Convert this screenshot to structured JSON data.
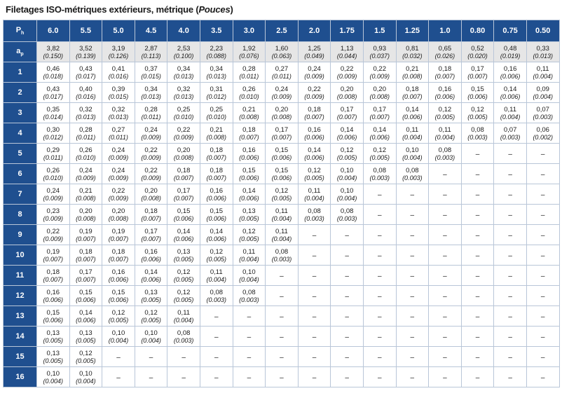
{
  "title": {
    "main": "Filetages ISO-métriques extérieurs, métrique (",
    "italic": "Pouces",
    "close": ")"
  },
  "corner": {
    "label": "P",
    "sub": "h"
  },
  "pitches": [
    "6.0",
    "5.5",
    "5.0",
    "4.5",
    "4.0",
    "3.5",
    "3.0",
    "2.5",
    "2.0",
    "1.75",
    "1.5",
    "1.25",
    "1.0",
    "0.80",
    "0.75",
    "0.50"
  ],
  "ap_row": {
    "label": "a",
    "sub": "p",
    "cells": [
      [
        "3,82",
        "(0.150)"
      ],
      [
        "3,52",
        "(0.139)"
      ],
      [
        "3,19",
        "(0.126)"
      ],
      [
        "2,87",
        "(0.113)"
      ],
      [
        "2,53",
        "(0.100)"
      ],
      [
        "2,23",
        "(0.088)"
      ],
      [
        "1,92",
        "(0.076)"
      ],
      [
        "1,60",
        "(0.063)"
      ],
      [
        "1,25",
        "(0.049)"
      ],
      [
        "1,13",
        "(0.044)"
      ],
      [
        "0,93",
        "(0.037)"
      ],
      [
        "0,81",
        "(0.032)"
      ],
      [
        "0,65",
        "(0.026)"
      ],
      [
        "0,52",
        "(0.020)"
      ],
      [
        "0,48",
        "(0.019)"
      ],
      [
        "0,33",
        "(0.013)"
      ]
    ]
  },
  "dash": "–",
  "rows": [
    {
      "label": "1",
      "cells": [
        [
          "0,46",
          "(0.018)"
        ],
        [
          "0,43",
          "(0.017)"
        ],
        [
          "0,41",
          "(0.016)"
        ],
        [
          "0,37",
          "(0.015)"
        ],
        [
          "0,34",
          "(0.013)"
        ],
        [
          "0,34",
          "(0.013)"
        ],
        [
          "0,28",
          "(0.011)"
        ],
        [
          "0,27",
          "(0.011)"
        ],
        [
          "0,24",
          "(0.009)"
        ],
        [
          "0,22",
          "(0.009)"
        ],
        [
          "0,22",
          "(0.009)"
        ],
        [
          "0,21",
          "(0.008)"
        ],
        [
          "0,18",
          "(0.007)"
        ],
        [
          "0,17",
          "(0.007)"
        ],
        [
          "0,16",
          "(0.006)"
        ],
        [
          "0,11",
          "(0.004)"
        ]
      ]
    },
    {
      "label": "2",
      "cells": [
        [
          "0,43",
          "(0.017)"
        ],
        [
          "0,40",
          "(0.016)"
        ],
        [
          "0,39",
          "(0.015)"
        ],
        [
          "0,34",
          "(0.013)"
        ],
        [
          "0,32",
          "(0.013)"
        ],
        [
          "0,31",
          "(0.012)"
        ],
        [
          "0,26",
          "(0.010)"
        ],
        [
          "0,24",
          "(0.009)"
        ],
        [
          "0,22",
          "(0.009)"
        ],
        [
          "0,20",
          "(0.008)"
        ],
        [
          "0,20",
          "(0.008)"
        ],
        [
          "0,18",
          "(0.007)"
        ],
        [
          "0,16",
          "(0.006)"
        ],
        [
          "0,15",
          "(0.006)"
        ],
        [
          "0,14",
          "(0.006)"
        ],
        [
          "0,09",
          "(0.004)"
        ]
      ]
    },
    {
      "label": "3",
      "cells": [
        [
          "0,35",
          "(0.014)"
        ],
        [
          "0,32",
          "(0.013)"
        ],
        [
          "0,32",
          "(0.013)"
        ],
        [
          "0,28",
          "(0.011)"
        ],
        [
          "0,25",
          "(0.010)"
        ],
        [
          "0,25",
          "(0.010)"
        ],
        [
          "0,21",
          "(0.008)"
        ],
        [
          "0,20",
          "(0.008)"
        ],
        [
          "0,18",
          "(0.007)"
        ],
        [
          "0,17",
          "(0.007)"
        ],
        [
          "0,17",
          "(0.007)"
        ],
        [
          "0,14",
          "(0.006)"
        ],
        [
          "0,12",
          "(0.005)"
        ],
        [
          "0,12",
          "(0.005)"
        ],
        [
          "0,11",
          "(0.004)"
        ],
        [
          "0,07",
          "(0.003)"
        ]
      ]
    },
    {
      "label": "4",
      "cells": [
        [
          "0,30",
          "(0.012)"
        ],
        [
          "0,28",
          "(0.011)"
        ],
        [
          "0,27",
          "(0.011)"
        ],
        [
          "0,24",
          "(0.009)"
        ],
        [
          "0,22",
          "(0.009)"
        ],
        [
          "0,21",
          "(0.008)"
        ],
        [
          "0,18",
          "(0.007)"
        ],
        [
          "0,17",
          "(0.007)"
        ],
        [
          "0,16",
          "(0.006)"
        ],
        [
          "0,14",
          "(0.006)"
        ],
        [
          "0,14",
          "(0.006)"
        ],
        [
          "0,11",
          "(0.004)"
        ],
        [
          "0,11",
          "(0.004)"
        ],
        [
          "0,08",
          "(0.003)"
        ],
        [
          "0,07",
          "(0.003)"
        ],
        [
          "0,06",
          "(0.002)"
        ]
      ]
    },
    {
      "label": "5",
      "cells": [
        [
          "0,29",
          "(0.011)"
        ],
        [
          "0,26",
          "(0.010)"
        ],
        [
          "0,24",
          "(0.009)"
        ],
        [
          "0,22",
          "(0.009)"
        ],
        [
          "0,20",
          "(0.008)"
        ],
        [
          "0,18",
          "(0.007)"
        ],
        [
          "0,16",
          "(0.006)"
        ],
        [
          "0,15",
          "(0.006)"
        ],
        [
          "0,14",
          "(0.006)"
        ],
        [
          "0,12",
          "(0.005)"
        ],
        [
          "0,12",
          "(0.005)"
        ],
        [
          "0,10",
          "(0.004)"
        ],
        [
          "0,08",
          "(0.003)"
        ],
        null,
        null,
        null
      ]
    },
    {
      "label": "6",
      "cells": [
        [
          "0,26",
          "(0.010)"
        ],
        [
          "0,24",
          "(0.009)"
        ],
        [
          "0,24",
          "(0.009)"
        ],
        [
          "0,22",
          "(0.009)"
        ],
        [
          "0,18",
          "(0.007)"
        ],
        [
          "0,18",
          "(0.007)"
        ],
        [
          "0,15",
          "(0.006)"
        ],
        [
          "0,15",
          "(0.006)"
        ],
        [
          "0,12",
          "(0.005)"
        ],
        [
          "0,10",
          "(0.004)"
        ],
        [
          "0,08",
          "(0.003)"
        ],
        [
          "0,08",
          "(0.003)"
        ],
        null,
        null,
        null,
        null
      ]
    },
    {
      "label": "7",
      "cells": [
        [
          "0,24",
          "(0.009)"
        ],
        [
          "0,21",
          "(0.008)"
        ],
        [
          "0,22",
          "(0.009)"
        ],
        [
          "0,20",
          "(0.008)"
        ],
        [
          "0,17",
          "(0.007)"
        ],
        [
          "0,16",
          "(0.006)"
        ],
        [
          "0,14",
          "(0.006)"
        ],
        [
          "0,12",
          "(0.005)"
        ],
        [
          "0,11",
          "(0.004)"
        ],
        [
          "0,10",
          "(0.004)"
        ],
        null,
        null,
        null,
        null,
        null,
        null
      ]
    },
    {
      "label": "8",
      "cells": [
        [
          "0,23",
          "(0.009)"
        ],
        [
          "0,20",
          "(0.008)"
        ],
        [
          "0,20",
          "(0.008)"
        ],
        [
          "0,18",
          "(0.007)"
        ],
        [
          "0,15",
          "(0.006)"
        ],
        [
          "0,15",
          "(0.006)"
        ],
        [
          "0,13",
          "(0.005)"
        ],
        [
          "0,11",
          "(0.004)"
        ],
        [
          "0,08",
          "(0.003)"
        ],
        [
          "0,08",
          "(0.003)"
        ],
        null,
        null,
        null,
        null,
        null,
        null
      ]
    },
    {
      "label": "9",
      "cells": [
        [
          "0,22",
          "(0.009)"
        ],
        [
          "0,19",
          "(0.007)"
        ],
        [
          "0,19",
          "(0.007)"
        ],
        [
          "0,17",
          "(0.007)"
        ],
        [
          "0,14",
          "(0.006)"
        ],
        [
          "0,14",
          "(0.006)"
        ],
        [
          "0,12",
          "(0.005)"
        ],
        [
          "0,11",
          "(0.004)"
        ],
        null,
        null,
        null,
        null,
        null,
        null,
        null,
        null
      ]
    },
    {
      "label": "10",
      "cells": [
        [
          "0,19",
          "(0.007)"
        ],
        [
          "0,18",
          "(0.007)"
        ],
        [
          "0,18",
          "(0.007)"
        ],
        [
          "0,16",
          "(0.006)"
        ],
        [
          "0,13",
          "(0.005)"
        ],
        [
          "0,12",
          "(0.005)"
        ],
        [
          "0,11",
          "(0.004)"
        ],
        [
          "0,08",
          "(0.003)"
        ],
        null,
        null,
        null,
        null,
        null,
        null,
        null,
        null
      ]
    },
    {
      "label": "11",
      "cells": [
        [
          "0,18",
          "(0.007)"
        ],
        [
          "0,17",
          "(0.007)"
        ],
        [
          "0,16",
          "(0.006)"
        ],
        [
          "0,14",
          "(0.006)"
        ],
        [
          "0,12",
          "(0.005)"
        ],
        [
          "0,11",
          "(0.004)"
        ],
        [
          "0,10",
          "(0.004)"
        ],
        null,
        null,
        null,
        null,
        null,
        null,
        null,
        null,
        null
      ]
    },
    {
      "label": "12",
      "cells": [
        [
          "0,16",
          "(0.006)"
        ],
        [
          "0,15",
          "(0.006)"
        ],
        [
          "0,15",
          "(0.006)"
        ],
        [
          "0,13",
          "(0.005)"
        ],
        [
          "0,12",
          "(0.005)"
        ],
        [
          "0,08",
          "(0.003)"
        ],
        [
          "0,08",
          "(0.003)"
        ],
        null,
        null,
        null,
        null,
        null,
        null,
        null,
        null,
        null
      ]
    },
    {
      "label": "13",
      "cells": [
        [
          "0,15",
          "(0.006)"
        ],
        [
          "0,14",
          "(0.006)"
        ],
        [
          "0,12",
          "(0.005)"
        ],
        [
          "0,12",
          "(0.005)"
        ],
        [
          "0,11",
          "(0.004)"
        ],
        null,
        null,
        null,
        null,
        null,
        null,
        null,
        null,
        null,
        null,
        null
      ]
    },
    {
      "label": "14",
      "cells": [
        [
          "0,13",
          "(0.005)"
        ],
        [
          "0,13",
          "(0.005)"
        ],
        [
          "0,10",
          "(0.004)"
        ],
        [
          "0,10",
          "(0.004)"
        ],
        [
          "0,08",
          "(0.003)"
        ],
        null,
        null,
        null,
        null,
        null,
        null,
        null,
        null,
        null,
        null,
        null
      ]
    },
    {
      "label": "15",
      "cells": [
        [
          "0,13",
          "(0.005)"
        ],
        [
          "0,12",
          "(0.005)"
        ],
        null,
        null,
        null,
        null,
        null,
        null,
        null,
        null,
        null,
        null,
        null,
        null,
        null,
        null
      ]
    },
    {
      "label": "16",
      "cells": [
        [
          "0,10",
          "(0.004)"
        ],
        [
          "0,10",
          "(0.004)"
        ],
        null,
        null,
        null,
        null,
        null,
        null,
        null,
        null,
        null,
        null,
        null,
        null,
        null,
        null
      ]
    }
  ]
}
